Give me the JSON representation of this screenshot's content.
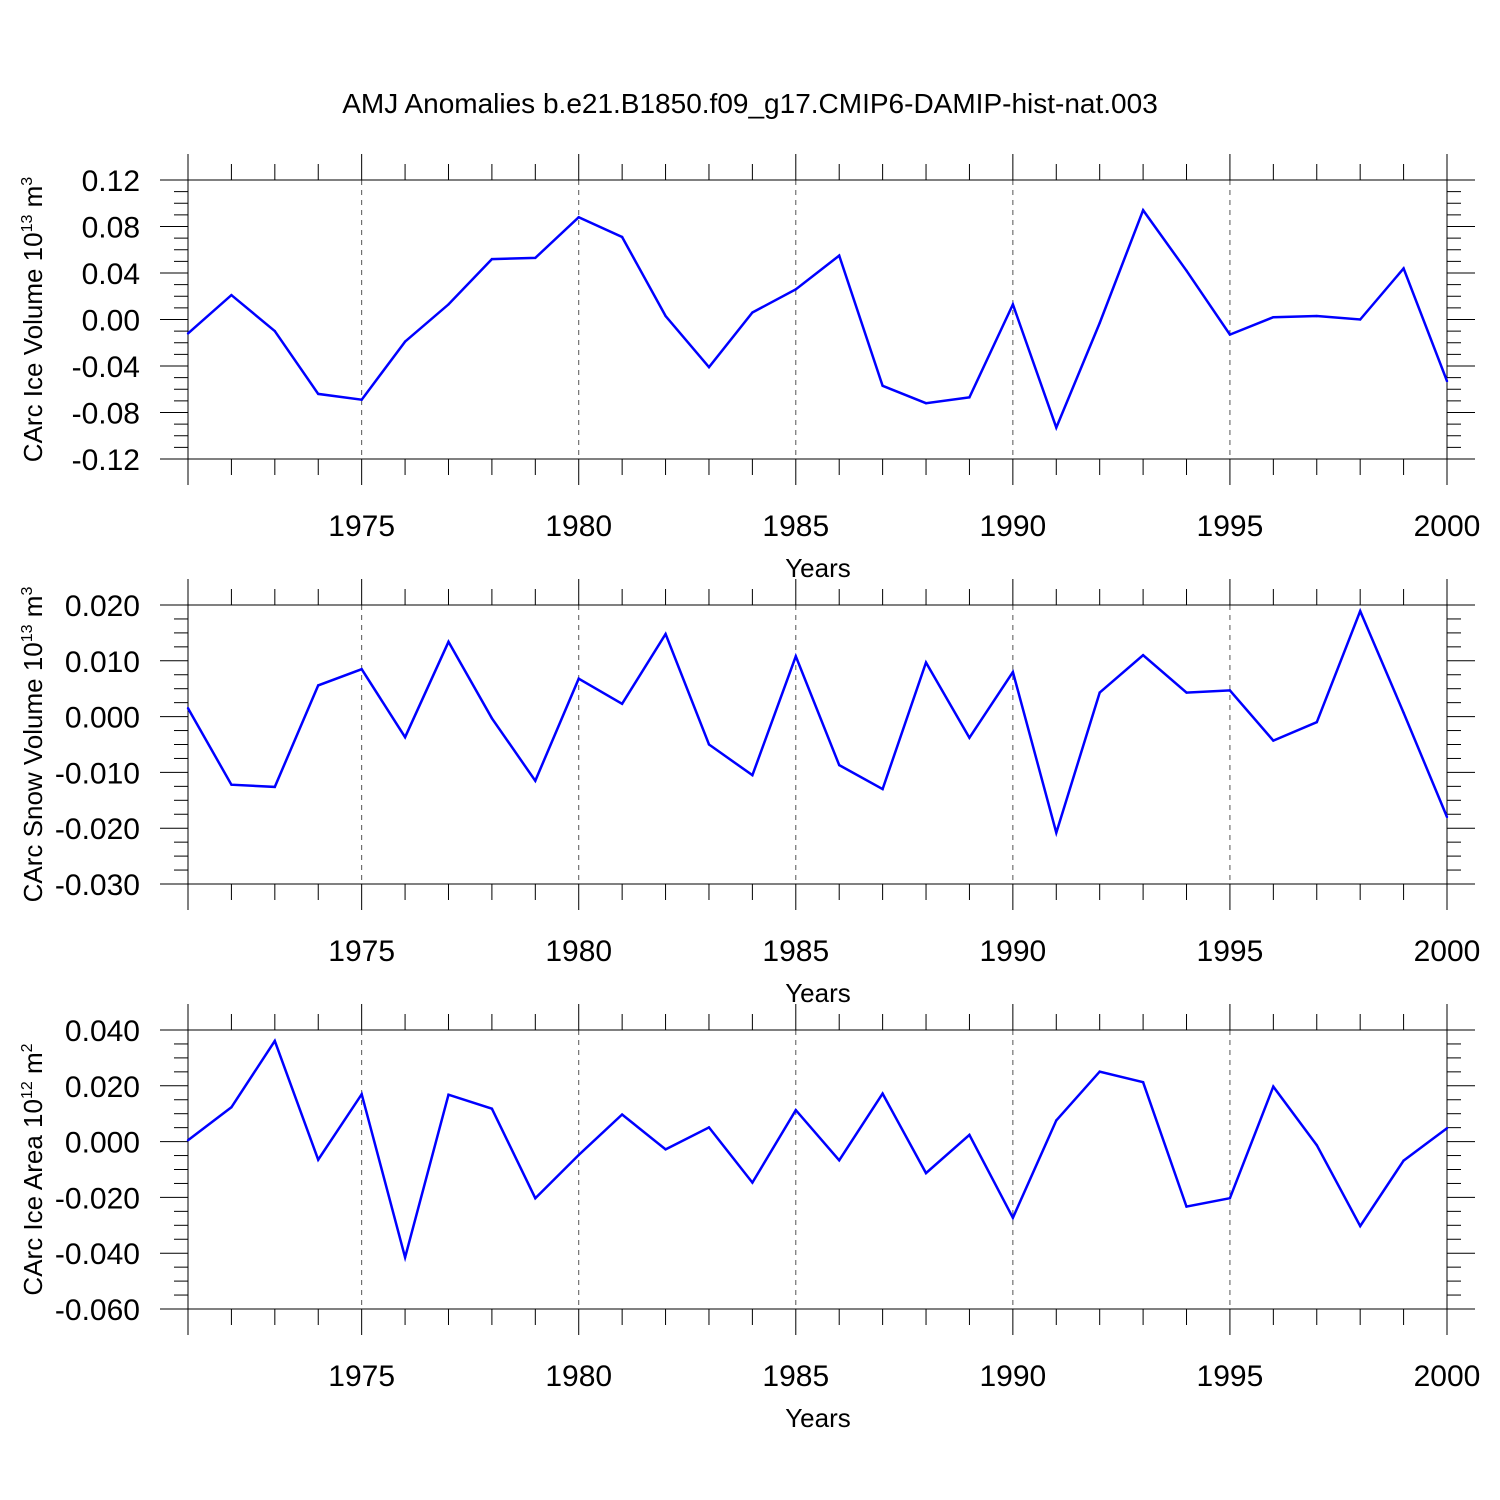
{
  "title": "AMJ Anomalies b.e21.B1850.f09_g17.CMIP6-DAMIP-hist-nat.003",
  "line_color": "#0000ff",
  "chart_data": [
    {
      "type": "line",
      "ylabel": {
        "text": "CArc Ice Volume 10",
        "sup": "13",
        "unit": " m",
        "unit_sup": "3"
      },
      "xlabel": "Years",
      "xlim": [
        1971,
        2000
      ],
      "ylim": [
        -0.12,
        0.12
      ],
      "yticks": [
        -0.12,
        -0.08,
        -0.04,
        0.0,
        0.04,
        0.08,
        0.12
      ],
      "ytick_labels": [
        "-0.12",
        "-0.08",
        "-0.04",
        "0.00",
        "0.04",
        "0.08",
        "0.12"
      ],
      "xticks": [
        1975,
        1980,
        1985,
        1990,
        1995,
        2000
      ],
      "xtick_labels": [
        "1975",
        "1980",
        "1985",
        "1990",
        "1995",
        "2000"
      ],
      "x": [
        1971,
        1972,
        1973,
        1974,
        1975,
        1976,
        1977,
        1978,
        1979,
        1980,
        1981,
        1982,
        1983,
        1984,
        1985,
        1986,
        1987,
        1988,
        1989,
        1990,
        1991,
        1992,
        1993,
        1994,
        1995,
        1996,
        1997,
        1998,
        1999,
        2000
      ],
      "values": [
        -0.012,
        0.021,
        -0.01,
        -0.064,
        -0.069,
        -0.019,
        0.013,
        0.052,
        0.053,
        0.088,
        0.071,
        0.003,
        -0.041,
        0.006,
        0.026,
        0.055,
        -0.057,
        -0.072,
        -0.067,
        0.013,
        -0.093,
        -0.003,
        0.094,
        0.042,
        -0.013,
        0.002,
        0.003,
        0.0,
        0.044,
        -0.053
      ]
    },
    {
      "type": "line",
      "ylabel": {
        "text": "CArc Snow Volume 10",
        "sup": "13",
        "unit": " m",
        "unit_sup": "3"
      },
      "xlabel": "Years",
      "xlim": [
        1971,
        2000
      ],
      "ylim": [
        -0.03,
        0.02
      ],
      "yticks": [
        -0.03,
        -0.02,
        -0.01,
        0.0,
        0.01,
        0.02
      ],
      "ytick_labels": [
        "-0.030",
        "-0.020",
        "-0.010",
        "0.000",
        "0.010",
        "0.020"
      ],
      "xticks": [
        1975,
        1980,
        1985,
        1990,
        1995,
        2000
      ],
      "xtick_labels": [
        "1975",
        "1980",
        "1985",
        "1990",
        "1995",
        "2000"
      ],
      "x": [
        1971,
        1972,
        1973,
        1974,
        1975,
        1976,
        1977,
        1978,
        1979,
        1980,
        1981,
        1982,
        1983,
        1984,
        1985,
        1986,
        1987,
        1988,
        1989,
        1990,
        1991,
        1992,
        1993,
        1994,
        1995,
        1996,
        1997,
        1998,
        1999,
        2000
      ],
      "values": [
        0.0015,
        -0.0122,
        -0.0126,
        0.0056,
        0.0085,
        -0.0037,
        0.0134,
        -0.0003,
        -0.0115,
        0.0068,
        0.0023,
        0.0148,
        -0.005,
        -0.0105,
        0.0108,
        -0.0087,
        -0.013,
        0.0097,
        -0.0038,
        0.008,
        -0.0208,
        0.0043,
        0.011,
        0.0043,
        0.0047,
        -0.0043,
        -0.001,
        0.0189,
        0.0007,
        -0.018
      ]
    },
    {
      "type": "line",
      "ylabel": {
        "text": "CArc Ice Area 10",
        "sup": "12",
        "unit": " m",
        "unit_sup": "2"
      },
      "xlabel": "Years",
      "xlim": [
        1971,
        2000
      ],
      "ylim": [
        -0.06,
        0.04
      ],
      "yticks": [
        -0.06,
        -0.04,
        -0.02,
        0.0,
        0.02,
        0.04
      ],
      "ytick_labels": [
        "-0.060",
        "-0.040",
        "-0.020",
        "0.000",
        "0.020",
        "0.040"
      ],
      "xticks": [
        1975,
        1980,
        1985,
        1990,
        1995,
        2000
      ],
      "xtick_labels": [
        "1975",
        "1980",
        "1985",
        "1990",
        "1995",
        "2000"
      ],
      "x": [
        1971,
        1972,
        1973,
        1974,
        1975,
        1976,
        1977,
        1978,
        1979,
        1980,
        1981,
        1982,
        1983,
        1984,
        1985,
        1986,
        1987,
        1988,
        1989,
        1990,
        1991,
        1992,
        1993,
        1994,
        1995,
        1996,
        1997,
        1998,
        1999,
        2000
      ],
      "values": [
        0.0005,
        0.0123,
        0.0361,
        -0.0065,
        0.017,
        -0.0415,
        0.0168,
        0.0118,
        -0.0203,
        -0.0048,
        0.0097,
        -0.0028,
        0.0051,
        -0.0147,
        0.0113,
        -0.0067,
        0.0172,
        -0.0113,
        0.0024,
        -0.0273,
        0.0076,
        0.0251,
        0.0213,
        -0.0233,
        -0.0203,
        0.0197,
        -0.0013,
        -0.0303,
        -0.0068,
        0.0048
      ]
    }
  ]
}
